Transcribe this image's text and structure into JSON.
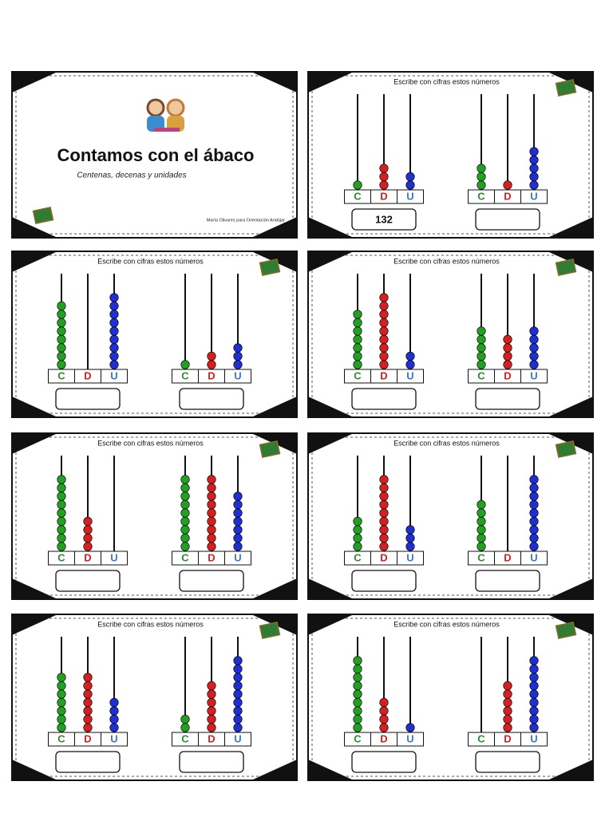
{
  "title_card": {
    "title": "Contamos con el ábaco",
    "subtitle": "Centenas, decenas y unidades",
    "author": "María Olivares para Orientación Andújar"
  },
  "bead_colors": [
    "#22a022",
    "#d42020",
    "#1f2fd0"
  ],
  "label_colors": [
    "#2e8b2e",
    "#d42020",
    "#3a78c8"
  ],
  "cards": [
    {
      "heading": "Escribe con cifras estos números",
      "abacuses": [
        {
          "labels": [
            "C",
            "D",
            "U"
          ],
          "beads": [
            1,
            3,
            2
          ],
          "answer": "132"
        },
        {
          "labels": [
            "C",
            "D",
            "U"
          ],
          "beads": [
            3,
            1,
            5
          ]
        }
      ]
    },
    {
      "heading": "Escribe con cifras estos números",
      "abacuses": [
        {
          "labels": [
            "C",
            "D",
            "U"
          ],
          "beads": [
            8,
            0,
            9
          ]
        },
        {
          "labels": [
            "C",
            "D",
            "U"
          ],
          "beads": [
            1,
            2,
            3
          ]
        }
      ]
    },
    {
      "heading": "Escribe con cifras estos números",
      "abacuses": [
        {
          "labels": [
            "C",
            "D",
            "U"
          ],
          "beads": [
            7,
            9,
            2
          ]
        },
        {
          "labels": [
            "C",
            "D",
            "U"
          ],
          "beads": [
            5,
            4,
            5
          ]
        }
      ]
    },
    {
      "heading": "Escribe con cifras estos números",
      "abacuses": [
        {
          "labels": [
            "C",
            "D",
            "U"
          ],
          "beads": [
            9,
            4,
            0
          ]
        },
        {
          "labels": [
            "C",
            "D",
            "U"
          ],
          "beads": [
            9,
            9,
            7
          ]
        }
      ]
    },
    {
      "heading": "Escribe con cifras estos números",
      "abacuses": [
        {
          "labels": [
            "C",
            "D",
            "U"
          ],
          "beads": [
            4,
            9,
            3
          ]
        },
        {
          "labels": [
            "C",
            "D",
            "U"
          ],
          "beads": [
            6,
            0,
            9
          ]
        }
      ]
    },
    {
      "heading": "Escribe con cifras estos números",
      "abacuses": [
        {
          "labels": [
            "C",
            "D",
            "U"
          ],
          "beads": [
            7,
            7,
            4
          ]
        },
        {
          "labels": [
            "C",
            "D",
            "U"
          ],
          "beads": [
            2,
            6,
            9
          ]
        }
      ]
    },
    {
      "heading": "Escribe con cifras estos números",
      "abacuses": [
        {
          "labels": [
            "C",
            "D",
            "U"
          ],
          "beads": [
            9,
            4,
            1
          ]
        },
        {
          "labels": [
            "C",
            "D",
            "U"
          ],
          "beads": [
            0,
            6,
            9
          ]
        }
      ]
    }
  ]
}
